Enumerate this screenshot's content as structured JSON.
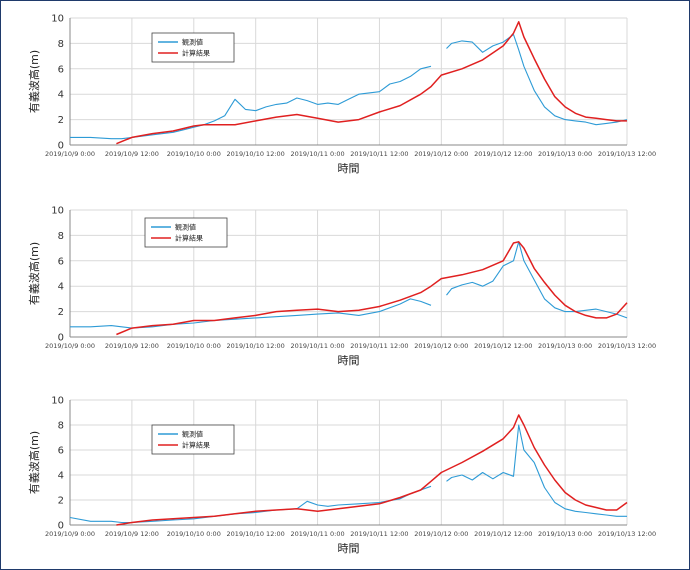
{
  "colors": {
    "observed": "#2e9bd6",
    "computed": "#e02020",
    "grid": "#d9d9d9",
    "axis": "#888888"
  },
  "chart_data": [
    {
      "type": "line",
      "ylabel": "有義波高(m)",
      "xlabel": "時間",
      "ylim": [
        0,
        10
      ],
      "yticks": [
        0,
        2,
        4,
        6,
        8,
        10
      ],
      "xlim_hours": [
        0,
        108
      ],
      "xticks": [
        "2019/10/9 0:00",
        "2019/10/9 12:00",
        "2019/10/10 0:00",
        "2019/10/10 12:00",
        "2019/10/11 0:00",
        "2019/10/11 12:00",
        "2019/10/12 0:00",
        "2019/10/12 12:00",
        "2019/10/13 0:00",
        "2019/10/13 12:00"
      ],
      "legend": [
        "観測値",
        "計算結果"
      ],
      "series": [
        {
          "name": "観測値",
          "x": [
            0,
            4,
            8,
            10,
            12,
            16,
            20,
            22,
            24,
            26,
            28,
            30,
            32,
            34,
            36,
            38,
            40,
            42,
            44,
            46,
            48,
            50,
            52,
            54,
            56,
            58,
            60,
            62,
            64,
            66,
            68,
            70,
            72,
            73,
            74,
            76,
            78,
            80,
            82,
            84,
            86,
            87,
            88,
            90,
            92,
            94,
            96,
            98,
            100,
            102,
            104,
            106,
            108
          ],
          "y": [
            0.6,
            0.6,
            0.5,
            0.5,
            0.6,
            0.8,
            1.0,
            1.2,
            1.4,
            1.6,
            1.9,
            2.3,
            3.6,
            2.8,
            2.7,
            3.0,
            3.2,
            3.3,
            3.7,
            3.5,
            3.2,
            3.3,
            3.2,
            3.6,
            4.0,
            4.1,
            4.2,
            4.8,
            5.0,
            5.4,
            6.0,
            6.2,
            null,
            7.6,
            8.0,
            8.2,
            8.1,
            7.3,
            7.8,
            8.1,
            8.7,
            7.5,
            6.2,
            4.3,
            3.0,
            2.3,
            2.0,
            1.9,
            1.8,
            1.6,
            1.7,
            1.8,
            2.0
          ]
        },
        {
          "name": "計算結果",
          "x": [
            9,
            12,
            16,
            20,
            22,
            24,
            26,
            28,
            32,
            36,
            40,
            44,
            48,
            52,
            56,
            60,
            64,
            68,
            70,
            72,
            76,
            80,
            84,
            86,
            87,
            88,
            90,
            92,
            94,
            96,
            98,
            100,
            102,
            104,
            106,
            108
          ],
          "y": [
            0.1,
            0.6,
            0.9,
            1.1,
            1.3,
            1.5,
            1.6,
            1.6,
            1.6,
            1.9,
            2.2,
            2.4,
            2.1,
            1.8,
            2.0,
            2.6,
            3.1,
            4.0,
            4.6,
            5.5,
            6.0,
            6.7,
            7.8,
            8.8,
            9.7,
            8.5,
            6.8,
            5.2,
            3.8,
            3.0,
            2.5,
            2.2,
            2.1,
            2.0,
            1.9,
            1.9
          ]
        }
      ]
    },
    {
      "type": "line",
      "ylabel": "有義波高(m)",
      "xlabel": "時間",
      "ylim": [
        0,
        10
      ],
      "yticks": [
        0,
        2,
        4,
        6,
        8,
        10
      ],
      "xlim_hours": [
        0,
        108
      ],
      "xticks": [
        "2019/10/9 0:00",
        "2019/10/9 12:00",
        "2019/10/10 0:00",
        "2019/10/10 12:00",
        "2019/10/11 0:00",
        "2019/10/11 12:00",
        "2019/10/12 0:00",
        "2019/10/12 12:00",
        "2019/10/13 0:00",
        "2019/10/13 12:00"
      ],
      "legend": [
        "観測値",
        "計算結果"
      ],
      "series": [
        {
          "name": "観測値",
          "x": [
            0,
            4,
            8,
            10,
            12,
            16,
            20,
            24,
            28,
            32,
            36,
            40,
            44,
            48,
            52,
            56,
            60,
            64,
            66,
            68,
            70,
            72,
            73,
            74,
            76,
            78,
            80,
            82,
            84,
            86,
            87,
            88,
            90,
            92,
            94,
            96,
            98,
            100,
            102,
            104,
            106,
            108
          ],
          "y": [
            0.8,
            0.8,
            0.9,
            0.8,
            0.7,
            0.8,
            1.0,
            1.1,
            1.3,
            1.4,
            1.5,
            1.6,
            1.7,
            1.8,
            1.9,
            1.7,
            2.0,
            2.6,
            3.0,
            2.8,
            2.5,
            null,
            3.3,
            3.8,
            4.1,
            4.3,
            4.0,
            4.4,
            5.6,
            6.0,
            7.5,
            6.0,
            4.5,
            3.0,
            2.3,
            2.0,
            2.0,
            2.1,
            2.2,
            2.0,
            1.8,
            1.5
          ]
        },
        {
          "name": "計算結果",
          "x": [
            9,
            12,
            16,
            20,
            24,
            28,
            32,
            36,
            40,
            44,
            48,
            52,
            56,
            60,
            64,
            68,
            70,
            72,
            76,
            80,
            84,
            86,
            87,
            88,
            90,
            92,
            94,
            96,
            98,
            100,
            102,
            104,
            106,
            108
          ],
          "y": [
            0.2,
            0.7,
            0.9,
            1.0,
            1.3,
            1.3,
            1.5,
            1.7,
            2.0,
            2.1,
            2.2,
            2.0,
            2.1,
            2.4,
            2.9,
            3.5,
            4.0,
            4.6,
            4.9,
            5.3,
            6.0,
            7.4,
            7.5,
            7.0,
            5.4,
            4.3,
            3.3,
            2.5,
            2.0,
            1.7,
            1.5,
            1.5,
            1.8,
            2.7
          ]
        }
      ]
    },
    {
      "type": "line",
      "ylabel": "有義波高(m)",
      "xlabel": "時間",
      "ylim": [
        0,
        10
      ],
      "yticks": [
        0,
        2,
        4,
        6,
        8,
        10
      ],
      "xlim_hours": [
        0,
        108
      ],
      "xticks": [
        "2019/10/9 0:00",
        "2019/10/9 12:00",
        "2019/10/10 0:00",
        "2019/10/10 12:00",
        "2019/10/11 0:00",
        "2019/10/11 12:00",
        "2019/10/12 0:00",
        "2019/10/12 12:00",
        "2019/10/13 0:00",
        "2019/10/13 12:00"
      ],
      "legend": [
        "観測値",
        "計算結果"
      ],
      "series": [
        {
          "name": "観測値",
          "x": [
            0,
            4,
            8,
            10,
            12,
            16,
            20,
            24,
            28,
            32,
            36,
            40,
            44,
            46,
            48,
            50,
            52,
            56,
            60,
            64,
            66,
            68,
            70,
            72,
            73,
            74,
            76,
            78,
            80,
            82,
            84,
            86,
            87,
            88,
            90,
            92,
            94,
            96,
            98,
            100,
            102,
            104,
            106,
            108
          ],
          "y": [
            0.6,
            0.3,
            0.3,
            0.2,
            0.2,
            0.3,
            0.4,
            0.5,
            0.7,
            0.9,
            1.0,
            1.2,
            1.3,
            1.9,
            1.6,
            1.5,
            1.6,
            1.7,
            1.8,
            2.1,
            2.5,
            2.8,
            3.1,
            null,
            3.5,
            3.8,
            4.0,
            3.6,
            4.2,
            3.7,
            4.2,
            3.9,
            8.0,
            6.0,
            5.0,
            3.0,
            1.8,
            1.3,
            1.1,
            1.0,
            0.9,
            0.8,
            0.7,
            0.7
          ]
        },
        {
          "name": "計算結果",
          "x": [
            9,
            12,
            16,
            20,
            24,
            28,
            32,
            36,
            40,
            44,
            48,
            52,
            56,
            60,
            64,
            68,
            70,
            72,
            76,
            80,
            84,
            86,
            87,
            88,
            90,
            92,
            94,
            96,
            98,
            100,
            102,
            104,
            106,
            108
          ],
          "y": [
            0.0,
            0.2,
            0.4,
            0.5,
            0.6,
            0.7,
            0.9,
            1.1,
            1.2,
            1.3,
            1.1,
            1.3,
            1.5,
            1.7,
            2.2,
            2.8,
            3.5,
            4.2,
            5.0,
            5.9,
            6.9,
            7.8,
            8.8,
            8.0,
            6.2,
            4.8,
            3.6,
            2.6,
            2.0,
            1.6,
            1.4,
            1.2,
            1.2,
            1.8
          ]
        }
      ]
    }
  ]
}
